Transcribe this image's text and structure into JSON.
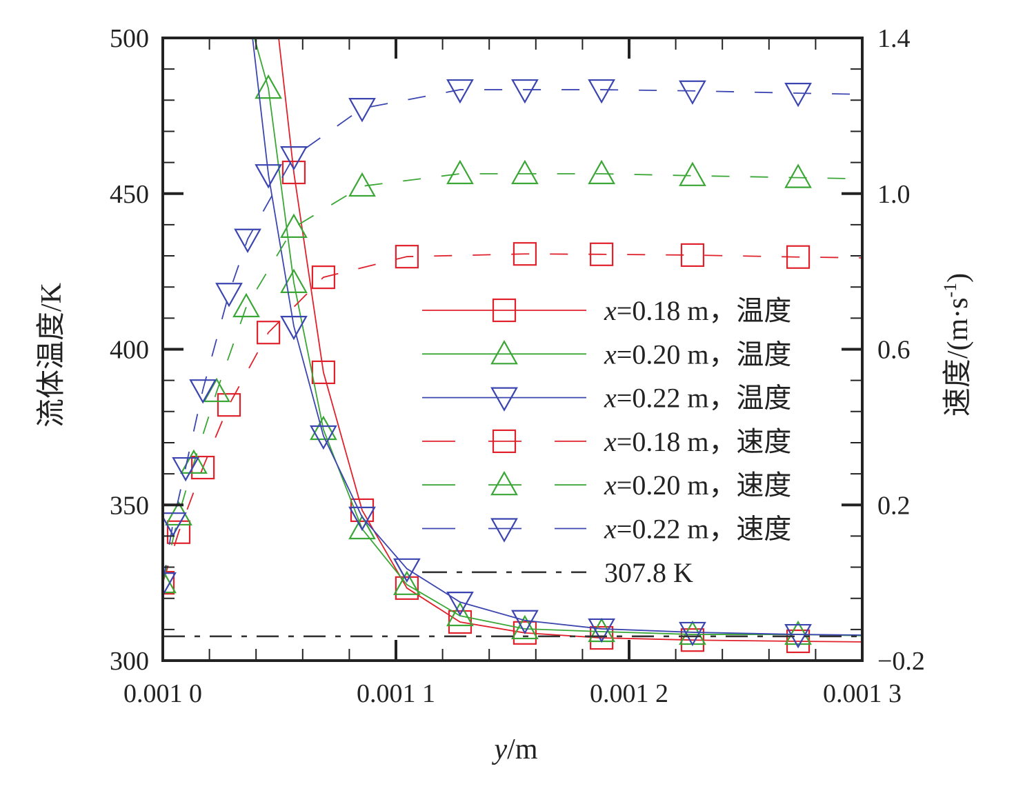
{
  "chart_data": {
    "type": "line",
    "xlabel_var": "y",
    "xlabel_unit": "/m",
    "ylabel_left": "流体温度/K",
    "ylabel_right_main": "速度/(m·s",
    "ylabel_right_sup": "-1",
    "ylabel_right_close": ")",
    "xlim": [
      0.001,
      0.0013
    ],
    "ylim_left": [
      300,
      500
    ],
    "ylim_right": [
      -0.2,
      1.4
    ],
    "x_ticks": [
      0.001,
      0.0011,
      0.0012,
      0.0013
    ],
    "x_tick_labels": [
      "0.001 0",
      "0.001 1",
      "0.001 2",
      "0.001 3"
    ],
    "y_left_ticks": [
      300,
      350,
      400,
      450,
      500
    ],
    "y_left_tick_labels": [
      "300",
      "350",
      "400",
      "450",
      "500"
    ],
    "y_right_ticks": [
      -0.2,
      0.2,
      0.6,
      1.0,
      1.4
    ],
    "y_right_tick_labels": [
      "−0.2",
      "0.2",
      "0.6",
      "1.0",
      "1.4"
    ],
    "grid": false,
    "legend_position": "center-right",
    "series": [
      {
        "name": "x=0.18 m，温度",
        "legend_var": "x",
        "legend_rest": "=0.18 m，温度",
        "axis": "left",
        "color": "#e0202a",
        "dash": "solid",
        "marker": "square",
        "x": [
          0.0010497,
          0.0010562,
          0.0010689,
          0.0010855,
          0.0011047,
          0.0011275,
          0.0011553,
          0.0011882,
          0.0012272,
          0.0012725,
          0.0013
        ],
        "y": [
          500,
          456.8,
          392.6,
          348.3,
          323.3,
          312.4,
          308.9,
          307.3,
          306.6,
          306.2,
          306.0
        ],
        "marker_idx": [
          1,
          2,
          3,
          4,
          5,
          6,
          7,
          8,
          9
        ]
      },
      {
        "name": "x=0.20 m，温度",
        "legend_var": "x",
        "legend_rest": "=0.20 m，温度",
        "axis": "left",
        "color": "#3aa635",
        "dash": "solid",
        "marker": "triangle-up",
        "x": [
          0.0010393,
          0.0010453,
          0.0010562,
          0.0010689,
          0.0010855,
          0.0011047,
          0.0011275,
          0.0011553,
          0.0011882,
          0.0012272,
          0.0012725,
          0.0013
        ],
        "y": [
          500,
          483.8,
          421.4,
          374.2,
          342.3,
          324.4,
          314.4,
          310.2,
          309.3,
          308.4,
          308.4,
          308.0
        ],
        "marker_idx": [
          1,
          2,
          3,
          4,
          5,
          6,
          7,
          8,
          9,
          10
        ]
      },
      {
        "name": "x=0.22 m，温度",
        "legend_var": "x",
        "legend_rest": "=0.22 m，温度",
        "axis": "left",
        "color": "#3b45b0",
        "dash": "solid",
        "marker": "triangle-down",
        "x": [
          0.0010385,
          0.0010453,
          0.0010562,
          0.0010689,
          0.0010855,
          0.0011047,
          0.0011275,
          0.0011553,
          0.0011882,
          0.0012272,
          0.0012725,
          0.0013
        ],
        "y": [
          500,
          456.1,
          407.4,
          372.2,
          346.1,
          329.5,
          318.8,
          312.9,
          310.2,
          309.1,
          308.4,
          308.2
        ],
        "marker_idx": [
          1,
          2,
          3,
          4,
          5,
          6,
          7,
          8,
          9,
          10
        ]
      },
      {
        "name": "x=0.18 m，速度",
        "legend_var": "x",
        "legend_rest": "=0.18 m，速度",
        "axis": "right",
        "color": "#e0202a",
        "dash": "dashed",
        "marker": "square",
        "x": [
          0.001,
          0.0010068,
          0.0010172,
          0.0010284,
          0.0010453,
          0.0010689,
          0.0011047,
          0.0011553,
          0.0011882,
          0.0012272,
          0.0012725,
          0.0013
        ],
        "y": [
          0.0,
          0.13,
          0.296,
          0.457,
          0.643,
          0.785,
          0.838,
          0.845,
          0.844,
          0.842,
          0.837,
          0.835
        ],
        "marker_idx": [
          0,
          1,
          2,
          3,
          4,
          5,
          6,
          7,
          8,
          9,
          10
        ]
      },
      {
        "name": "x=0.20 m，速度",
        "legend_var": "x",
        "legend_rest": "=0.20 m，速度",
        "axis": "right",
        "color": "#3aa635",
        "dash": "dashed",
        "marker": "triangle-up",
        "x": [
          0.001,
          0.0010068,
          0.0010133,
          0.0010231,
          0.0010358,
          0.0010562,
          0.0010855,
          0.0011275,
          0.0011553,
          0.0011882,
          0.0012272,
          0.0012725,
          0.0013
        ],
        "y": [
          0.0,
          0.174,
          0.307,
          0.491,
          0.709,
          0.913,
          1.019,
          1.051,
          1.051,
          1.051,
          1.046,
          1.041,
          1.038
        ],
        "marker_idx": [
          0,
          1,
          2,
          3,
          4,
          5,
          6,
          7,
          8,
          9,
          10,
          11
        ]
      },
      {
        "name": "x=0.22 m，速度",
        "legend_var": "x",
        "legend_rest": "=0.22 m，速度",
        "axis": "right",
        "color": "#3b45b0",
        "dash": "dashed",
        "marker": "triangle-down",
        "x": [
          0.001,
          0.0010044,
          0.0010098,
          0.0010172,
          0.0010284,
          0.0010364,
          0.0010562,
          0.0010855,
          0.0011275,
          0.0011553,
          0.0011882,
          0.0012272,
          0.0012725,
          0.0013
        ],
        "y": [
          0.0,
          0.154,
          0.296,
          0.496,
          0.744,
          0.883,
          1.095,
          1.219,
          1.267,
          1.267,
          1.267,
          1.264,
          1.258,
          1.255
        ],
        "marker_idx": [
          0,
          1,
          2,
          3,
          4,
          5,
          6,
          7,
          8,
          9,
          10,
          11,
          12
        ]
      },
      {
        "name": "307.8 K",
        "legend_var": "",
        "legend_rest": "307.8 K",
        "axis": "left",
        "color": "#333333",
        "dash": "dashdot",
        "marker": "none",
        "x": [
          0.001,
          0.0013
        ],
        "y": [
          307.8,
          307.8
        ],
        "marker_idx": []
      }
    ]
  }
}
